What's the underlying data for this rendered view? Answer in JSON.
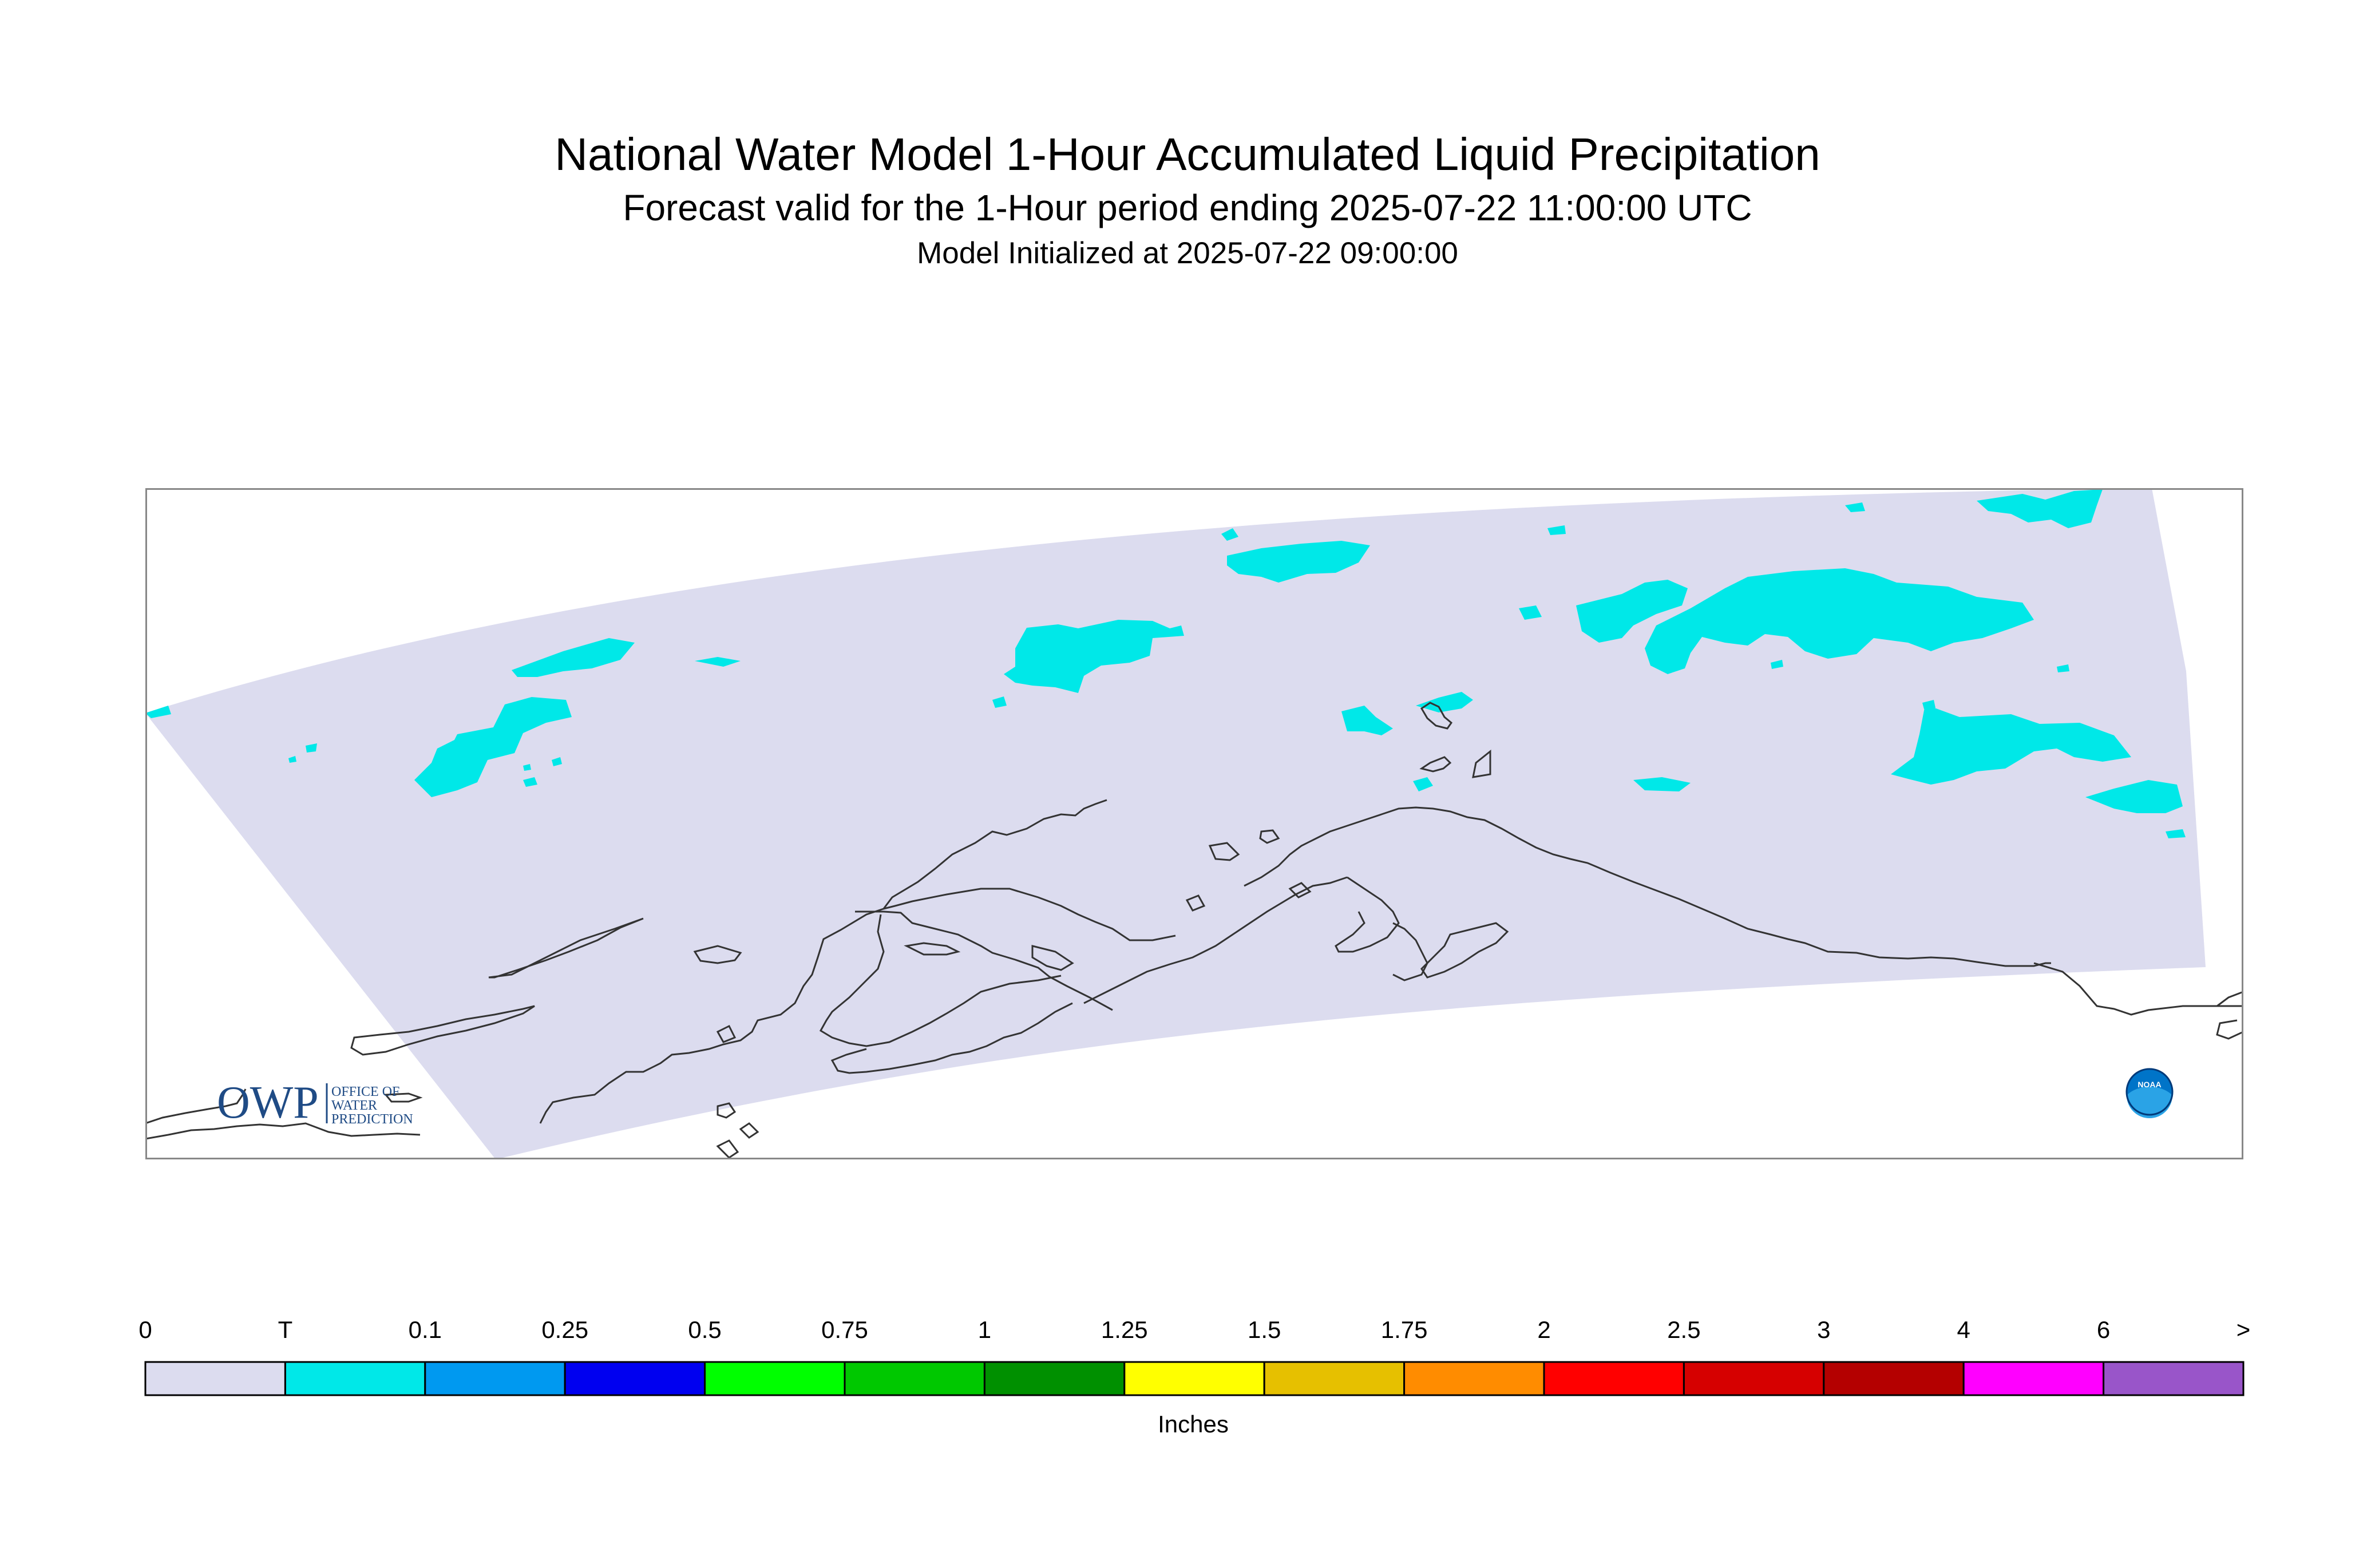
{
  "title": "National Water Model 1-Hour Accumulated Liquid Precipitation",
  "subtitle": "Forecast valid for the 1-Hour period ending 2025-07-22 11:00:00 UTC",
  "init_line": "Model Initialized at 2025-07-22 09:00:00",
  "colors": {
    "domain_fill": "#dcdcef",
    "trace_fill": "#00e8e8",
    "coastline": "#333333",
    "frame": "#888888"
  },
  "logo": {
    "owp_text": "OWP",
    "owp_sub": [
      "OFFICE OF",
      "WATER",
      "PREDICTION"
    ],
    "noaa_text": "NOAA"
  },
  "legend": {
    "units": "Inches",
    "labels": [
      "0",
      "T",
      "0.1",
      "0.25",
      "0.5",
      "0.75",
      "1",
      "1.25",
      "1.5",
      "1.75",
      "2",
      "2.5",
      "3",
      "4",
      "6",
      ">"
    ],
    "bins": [
      {
        "color": "#dcdcef"
      },
      {
        "color": "#00e8e8"
      },
      {
        "color": "#0099f0"
      },
      {
        "color": "#0000f0"
      },
      {
        "color": "#00ff00"
      },
      {
        "color": "#00c800"
      },
      {
        "color": "#009000"
      },
      {
        "color": "#ffff00"
      },
      {
        "color": "#e6c000"
      },
      {
        "color": "#ff8c00"
      },
      {
        "color": "#ff0000"
      },
      {
        "color": "#d60000"
      },
      {
        "color": "#b40000"
      },
      {
        "color": "#ff00ff"
      },
      {
        "color": "#9955c9"
      }
    ]
  }
}
